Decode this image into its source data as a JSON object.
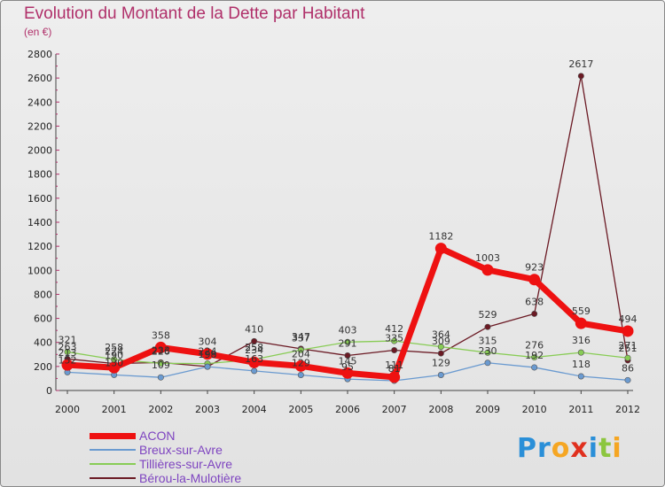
{
  "title": "Evolution du Montant de la Dette par Habitant",
  "subtitle": "(en €)",
  "logo": {
    "letters": [
      "P",
      "r",
      "o",
      "x",
      "i",
      "t",
      "i"
    ],
    "colors": [
      "#2a8fd8",
      "#2a8fd8",
      "#f5a623",
      "#e0301e",
      "#2a8fd8",
      "#8cc63f",
      "#f5a623"
    ]
  },
  "chart_data": {
    "type": "line",
    "categories": [
      "2000",
      "2001",
      "2002",
      "2003",
      "2004",
      "2005",
      "2006",
      "2007",
      "2008",
      "2009",
      "2010",
      "2011",
      "2012"
    ],
    "ylim": [
      0,
      2800
    ],
    "yticks": [
      0,
      200,
      400,
      600,
      800,
      1000,
      1200,
      1400,
      1600,
      1800,
      2000,
      2200,
      2400,
      2600,
      2800
    ],
    "grid": false,
    "legend_position": "bottom-left",
    "series": [
      {
        "name": "ACON",
        "color": "#ee1111",
        "values": [
          213,
          190,
          358,
          304,
          234,
          204,
          145,
          111,
          1182,
          1003,
          923,
          559,
          494
        ]
      },
      {
        "name": "Breux-sur-Avre",
        "color": "#6a9ad0",
        "values": [
          152,
          130,
          109,
          198,
          163,
          129,
          95,
          81,
          129,
          230,
          192,
          118,
          86
        ]
      },
      {
        "name": "Tillières-sur-Avre",
        "color": "#88cc55",
        "values": [
          321,
          258,
          226,
          224,
          258,
          337,
          403,
          412,
          364,
          315,
          276,
          316,
          271
        ]
      },
      {
        "name": "Bérou-la-Mulotière",
        "color": "#6b1a24",
        "values": [
          263,
          224,
          233,
          199,
          410,
          347,
          291,
          335,
          309,
          529,
          638,
          2617,
          251
        ]
      }
    ]
  }
}
